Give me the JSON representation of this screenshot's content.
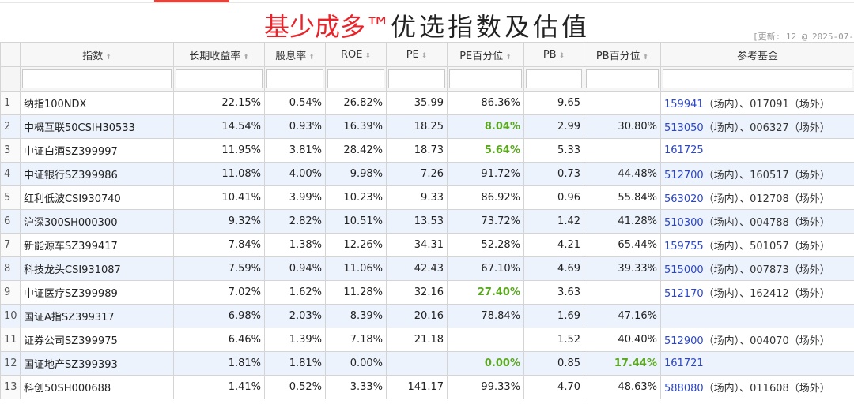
{
  "title": {
    "brand": "基少成多™",
    "rest": "优选指数及估值"
  },
  "updated": "[更新: 12 @ 2025-07-",
  "columns": [
    "",
    "指数",
    "长期收益率",
    "股息率",
    "ROE",
    "PE",
    "PE百分位",
    "PB",
    "PB百分位",
    "参考基金"
  ],
  "sort_icon": "sort-icon",
  "colors": {
    "highlight_green": "#5aa81e",
    "fund_code_blue": "#2b46c5",
    "row_alt": "#edf3fd"
  },
  "rows": [
    {
      "idx": "1",
      "name": "纳指100NDX",
      "ret": "22.15%",
      "div": "0.54%",
      "roe": "26.82%",
      "pe": "35.99",
      "pep": "86.36%",
      "pep_hl": false,
      "pb": "9.65",
      "pbp": "",
      "pbp_hl": false,
      "code": "159941",
      "fund": "（场内）、017091（场外）"
    },
    {
      "idx": "2",
      "name": "中概互联50CSIH30533",
      "ret": "14.54%",
      "div": "0.93%",
      "roe": "16.39%",
      "pe": "18.25",
      "pep": "8.04%",
      "pep_hl": true,
      "pb": "2.99",
      "pbp": "30.80%",
      "pbp_hl": false,
      "code": "513050",
      "fund": "（场内）、006327（场外）"
    },
    {
      "idx": "3",
      "name": "中证白酒SZ399997",
      "ret": "11.95%",
      "div": "3.81%",
      "roe": "28.42%",
      "pe": "18.73",
      "pep": "5.64%",
      "pep_hl": true,
      "pb": "5.33",
      "pbp": "",
      "pbp_hl": false,
      "code": "161725",
      "fund": ""
    },
    {
      "idx": "4",
      "name": "中证银行SZ399986",
      "ret": "11.08%",
      "div": "4.00%",
      "roe": "9.98%",
      "pe": "7.26",
      "pep": "91.72%",
      "pep_hl": false,
      "pb": "0.73",
      "pbp": "44.48%",
      "pbp_hl": false,
      "code": "512700",
      "fund": "（场内）、160517（场外）"
    },
    {
      "idx": "5",
      "name": "红利低波CSI930740",
      "ret": "10.41%",
      "div": "3.99%",
      "roe": "10.23%",
      "pe": "9.33",
      "pep": "86.92%",
      "pep_hl": false,
      "pb": "0.96",
      "pbp": "55.84%",
      "pbp_hl": false,
      "code": "563020",
      "fund": "（场内）、012708（场外）"
    },
    {
      "idx": "6",
      "name": "沪深300SH000300",
      "ret": "9.32%",
      "div": "2.82%",
      "roe": "10.51%",
      "pe": "13.53",
      "pep": "73.72%",
      "pep_hl": false,
      "pb": "1.42",
      "pbp": "41.28%",
      "pbp_hl": false,
      "code": "510300",
      "fund": "（场内）、004788（场外）"
    },
    {
      "idx": "7",
      "name": "新能源车SZ399417",
      "ret": "7.84%",
      "div": "1.38%",
      "roe": "12.26%",
      "pe": "34.31",
      "pep": "52.28%",
      "pep_hl": false,
      "pb": "4.21",
      "pbp": "65.44%",
      "pbp_hl": false,
      "code": "159755",
      "fund": "（场内）、501057（场外）"
    },
    {
      "idx": "8",
      "name": "科技龙头CSI931087",
      "ret": "7.59%",
      "div": "0.94%",
      "roe": "11.06%",
      "pe": "42.43",
      "pep": "67.10%",
      "pep_hl": false,
      "pb": "4.69",
      "pbp": "39.33%",
      "pbp_hl": false,
      "code": "515000",
      "fund": "（场内）、007873（场外）"
    },
    {
      "idx": "9",
      "name": "中证医疗SZ399989",
      "ret": "7.02%",
      "div": "1.62%",
      "roe": "11.28%",
      "pe": "32.16",
      "pep": "27.40%",
      "pep_hl": true,
      "pb": "3.63",
      "pbp": "",
      "pbp_hl": false,
      "code": "512170",
      "fund": "（场内）、162412（场外）"
    },
    {
      "idx": "10",
      "name": "国证A指SZ399317",
      "ret": "6.98%",
      "div": "2.03%",
      "roe": "8.39%",
      "pe": "20.16",
      "pep": "78.84%",
      "pep_hl": false,
      "pb": "1.69",
      "pbp": "47.16%",
      "pbp_hl": false,
      "code": "",
      "fund": ""
    },
    {
      "idx": "11",
      "name": "证券公司SZ399975",
      "ret": "6.46%",
      "div": "1.39%",
      "roe": "7.18%",
      "pe": "21.18",
      "pep": "",
      "pep_hl": false,
      "pb": "1.52",
      "pbp": "40.40%",
      "pbp_hl": false,
      "code": "512900",
      "fund": "（场内）、004070（场外）"
    },
    {
      "idx": "12",
      "name": "国证地产SZ399393",
      "ret": "1.81%",
      "div": "1.81%",
      "roe": "0.00%",
      "pe": "",
      "pep": "0.00%",
      "pep_hl": true,
      "pb": "0.85",
      "pbp": "17.44%",
      "pbp_hl": true,
      "code": "161721",
      "fund": ""
    },
    {
      "idx": "13",
      "name": "科创50SH000688",
      "ret": "1.41%",
      "div": "0.52%",
      "roe": "3.33%",
      "pe": "141.17",
      "pep": "99.33%",
      "pep_hl": false,
      "pb": "4.70",
      "pbp": "48.63%",
      "pbp_hl": false,
      "code": "588080",
      "fund": "（场内）、011608（场外）"
    }
  ]
}
